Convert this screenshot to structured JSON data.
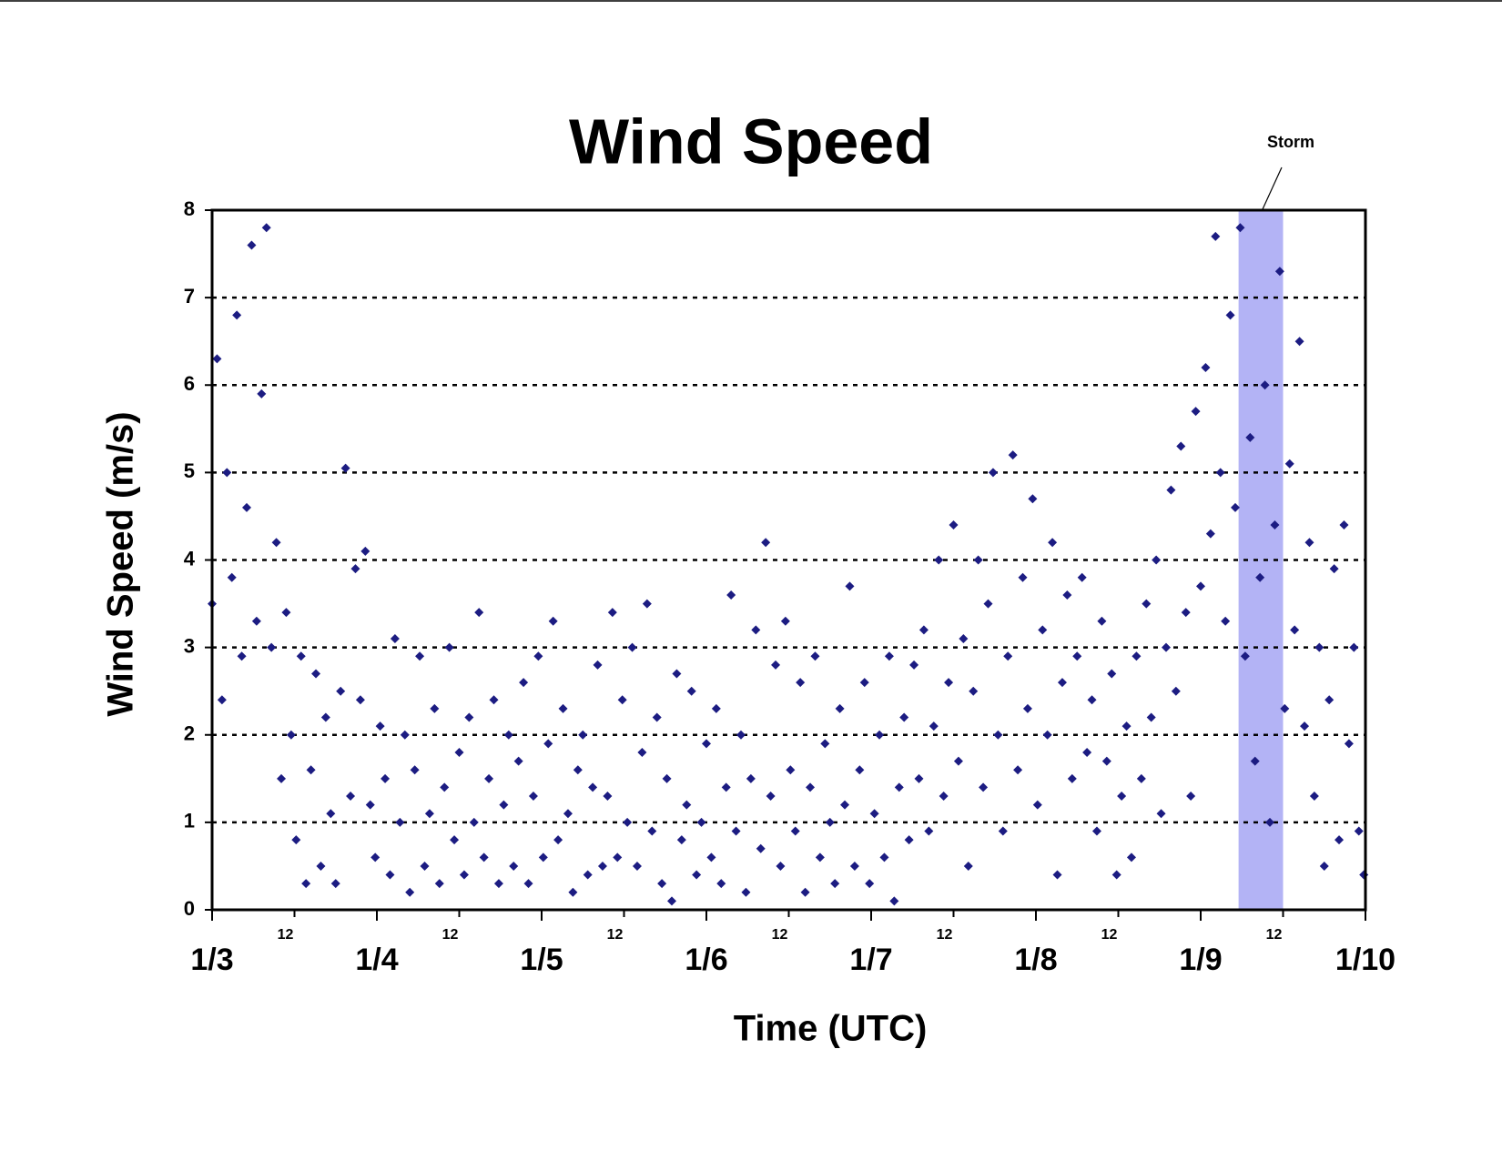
{
  "chart_data": {
    "type": "scatter",
    "title": "Wind Speed",
    "xlabel": "Time (UTC)",
    "ylabel": "Wind Speed (m/s)",
    "color": "#1c1c82",
    "grid": true,
    "xlim": [
      3,
      10
    ],
    "ylim": [
      0,
      8
    ],
    "yticks": [
      0,
      1,
      2,
      3,
      4,
      5,
      6,
      7,
      8
    ],
    "xticks": [
      {
        "value": 3,
        "label": "1/3"
      },
      {
        "value": 3.5,
        "label": "12"
      },
      {
        "value": 4,
        "label": "1/4"
      },
      {
        "value": 4.5,
        "label": "12"
      },
      {
        "value": 5,
        "label": "1/5"
      },
      {
        "value": 5.5,
        "label": "12"
      },
      {
        "value": 6,
        "label": "1/6"
      },
      {
        "value": 6.5,
        "label": "12"
      },
      {
        "value": 7,
        "label": "1/7"
      },
      {
        "value": 7.5,
        "label": "12"
      },
      {
        "value": 8,
        "label": "1/8"
      },
      {
        "value": 8.5,
        "label": "12"
      },
      {
        "value": 9,
        "label": "1/9"
      },
      {
        "value": 9.5,
        "label": "12"
      },
      {
        "value": 10,
        "label": "1/10"
      }
    ],
    "annotation": {
      "text": "Storm",
      "band": [
        9.23,
        9.5
      ],
      "color": "#b3b3f5"
    },
    "x": [
      3,
      3.03,
      3.06,
      3.09,
      3.12,
      3.15,
      3.18,
      3.21,
      3.24,
      3.27,
      3.3,
      3.33,
      3.36,
      3.39,
      3.42,
      3.45,
      3.48,
      3.51,
      3.54,
      3.57,
      3.6,
      3.63,
      3.66,
      3.69,
      3.72,
      3.75,
      3.78,
      3.81,
      3.84,
      3.87,
      3.9,
      3.93,
      3.96,
      3.99,
      4.02,
      4.05,
      4.08,
      4.11,
      4.14,
      4.17,
      4.2,
      4.23,
      4.26,
      4.29,
      4.32,
      4.35,
      4.38,
      4.41,
      4.44,
      4.47,
      4.5,
      4.53,
      4.56,
      4.59,
      4.62,
      4.65,
      4.68,
      4.71,
      4.74,
      4.77,
      4.8,
      4.83,
      4.86,
      4.89,
      4.92,
      4.95,
      4.98,
      5.01,
      5.04,
      5.07,
      5.1,
      5.13,
      5.16,
      5.19,
      5.22,
      5.25,
      5.28,
      5.31,
      5.34,
      5.37,
      5.4,
      5.43,
      5.46,
      5.49,
      5.52,
      5.55,
      5.58,
      5.61,
      5.64,
      5.67,
      5.7,
      5.73,
      5.76,
      5.79,
      5.82,
      5.85,
      5.88,
      5.91,
      5.94,
      5.97,
      6,
      6.03,
      6.06,
      6.09,
      6.12,
      6.15,
      6.18,
      6.21,
      6.24,
      6.27,
      6.3,
      6.33,
      6.36,
      6.39,
      6.42,
      6.45,
      6.48,
      6.51,
      6.54,
      6.57,
      6.6,
      6.63,
      6.66,
      6.69,
      6.72,
      6.75,
      6.78,
      6.81,
      6.84,
      6.87,
      6.9,
      6.93,
      6.96,
      6.99,
      7.02,
      7.05,
      7.08,
      7.11,
      7.14,
      7.17,
      7.2,
      7.23,
      7.26,
      7.29,
      7.32,
      7.35,
      7.38,
      7.41,
      7.44,
      7.47,
      7.5,
      7.53,
      7.56,
      7.59,
      7.62,
      7.65,
      7.68,
      7.71,
      7.74,
      7.77,
      7.8,
      7.83,
      7.86,
      7.89,
      7.92,
      7.95,
      7.98,
      8.01,
      8.04,
      8.07,
      8.1,
      8.13,
      8.16,
      8.19,
      8.22,
      8.25,
      8.28,
      8.31,
      8.34,
      8.37,
      8.4,
      8.43,
      8.46,
      8.49,
      8.52,
      8.55,
      8.58,
      8.61,
      8.64,
      8.67,
      8.7,
      8.73,
      8.76,
      8.79,
      8.82,
      8.85,
      8.88,
      8.91,
      8.94,
      8.97,
      9,
      9.03,
      9.06,
      9.09,
      9.12,
      9.15,
      9.18,
      9.21,
      9.24,
      9.27,
      9.3,
      9.33,
      9.36,
      9.39,
      9.42,
      9.45,
      9.48,
      9.51,
      9.54,
      9.57,
      9.6,
      9.63,
      9.66,
      9.69,
      9.72,
      9.75,
      9.78,
      9.81,
      9.84,
      9.87,
      9.9,
      9.93,
      9.96,
      9.99
    ],
    "values": [
      3.5,
      6.3,
      2.4,
      5.0,
      3.8,
      6.8,
      2.9,
      4.6,
      7.6,
      3.3,
      5.9,
      7.8,
      3.0,
      4.2,
      1.5,
      3.4,
      2.0,
      0.8,
      2.9,
      0.3,
      1.6,
      2.7,
      0.5,
      2.2,
      1.1,
      0.3,
      2.5,
      5.05,
      1.3,
      3.9,
      2.4,
      4.1,
      1.2,
      0.6,
      2.1,
      1.5,
      0.4,
      3.1,
      1.0,
      2.0,
      0.2,
      1.6,
      2.9,
      0.5,
      1.1,
      2.3,
      0.3,
      1.4,
      3.0,
      0.8,
      1.8,
      0.4,
      2.2,
      1.0,
      3.4,
      0.6,
      1.5,
      2.4,
      0.3,
      1.2,
      2.0,
      0.5,
      1.7,
      2.6,
      0.3,
      1.3,
      2.9,
      0.6,
      1.9,
      3.3,
      0.8,
      2.3,
      1.1,
      0.2,
      1.6,
      2.0,
      0.4,
      1.4,
      2.8,
      0.5,
      1.3,
      3.4,
      0.6,
      2.4,
      1.0,
      3.0,
      0.5,
      1.8,
      3.5,
      0.9,
      2.2,
      0.3,
      1.5,
      0.1,
      2.7,
      0.8,
      1.2,
      2.5,
      0.4,
      1.0,
      1.9,
      0.6,
      2.3,
      0.3,
      1.4,
      3.6,
      0.9,
      2.0,
      0.2,
      1.5,
      3.2,
      0.7,
      4.2,
      1.3,
      2.8,
      0.5,
      3.3,
      1.6,
      0.9,
      2.6,
      0.2,
      1.4,
      2.9,
      0.6,
      1.9,
      1.0,
      0.3,
      2.3,
      1.2,
      3.7,
      0.5,
      1.6,
      2.6,
      0.3,
      1.1,
      2.0,
      0.6,
      2.9,
      0.1,
      1.4,
      2.2,
      0.8,
      2.8,
      1.5,
      3.2,
      0.9,
      2.1,
      4.0,
      1.3,
      2.6,
      4.4,
      1.7,
      3.1,
      0.5,
      2.5,
      4.0,
      1.4,
      3.5,
      5.0,
      2.0,
      0.9,
      2.9,
      5.2,
      1.6,
      3.8,
      2.3,
      4.7,
      1.2,
      3.2,
      2.0,
      4.2,
      0.4,
      2.6,
      3.6,
      1.5,
      2.9,
      3.8,
      1.8,
      2.4,
      0.9,
      3.3,
      1.7,
      2.7,
      0.4,
      1.3,
      2.1,
      0.6,
      2.9,
      1.5,
      3.5,
      2.2,
      4.0,
      1.1,
      3.0,
      4.8,
      2.5,
      5.3,
      3.4,
      1.3,
      5.7,
      3.7,
      6.2,
      4.3,
      7.7,
      5.0,
      3.3,
      6.8,
      4.6,
      7.8,
      2.9,
      5.4,
      1.7,
      3.8,
      6.0,
      1.0,
      4.4,
      7.3,
      2.3,
      5.1,
      3.2,
      6.5,
      2.1,
      4.2,
      1.3,
      3.0,
      0.5,
      2.4,
      3.9,
      0.8,
      4.4,
      1.9,
      3.0,
      0.9,
      0.4
    ]
  }
}
